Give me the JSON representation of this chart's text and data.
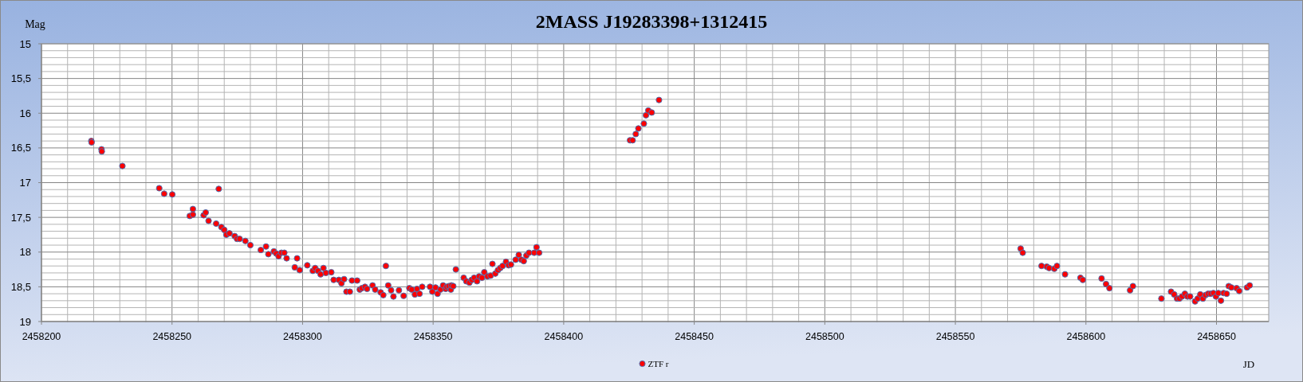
{
  "chart_data": {
    "type": "scatter",
    "title": "2MASS J19283398+1312415",
    "xlabel": "JD",
    "ylabel": "Mag",
    "grid": true,
    "legend": "bottom",
    "marker": "circle",
    "xlim": [
      2458200,
      2458670
    ],
    "ylim": [
      19,
      15
    ],
    "xticks": [
      2458200,
      {
        "value": 2458210,
        "label": null
      },
      {
        "value": 2458220,
        "label": null
      },
      {
        "value": 2458230,
        "label": null
      },
      {
        "value": 2458240,
        "label": null
      },
      2458250,
      {
        "value": 2458260,
        "label": null
      },
      {
        "value": 2458270,
        "label": null
      },
      {
        "value": 2458280,
        "label": null
      },
      {
        "value": 2458290,
        "label": null
      },
      2458300,
      {
        "value": 2458310,
        "label": null
      },
      {
        "value": 2458320,
        "label": null
      },
      {
        "value": 2458330,
        "label": null
      },
      {
        "value": 2458340,
        "label": null
      },
      2458350,
      {
        "value": 2458360,
        "label": null
      },
      {
        "value": 2458370,
        "label": null
      },
      {
        "value": 2458380,
        "label": null
      },
      {
        "value": 2458390,
        "label": null
      },
      2458400,
      {
        "value": 2458410,
        "label": null
      },
      {
        "value": 2458420,
        "label": null
      },
      {
        "value": 2458430,
        "label": null
      },
      {
        "value": 2458440,
        "label": null
      },
      2458450,
      {
        "value": 2458460,
        "label": null
      },
      {
        "value": 2458470,
        "label": null
      },
      {
        "value": 2458480,
        "label": null
      },
      {
        "value": 2458490,
        "label": null
      },
      2458500,
      {
        "value": 2458510,
        "label": null
      },
      {
        "value": 2458520,
        "label": null
      },
      {
        "value": 2458530,
        "label": null
      },
      {
        "value": 2458540,
        "label": null
      },
      2458550,
      {
        "value": 2458560,
        "label": null
      },
      {
        "value": 2458570,
        "label": null
      },
      {
        "value": 2458580,
        "label": null
      },
      {
        "value": 2458590,
        "label": null
      },
      2458600,
      {
        "value": 2458610,
        "label": null
      },
      {
        "value": 2458620,
        "label": null
      },
      {
        "value": 2458630,
        "label": null
      },
      {
        "value": 2458640,
        "label": null
      },
      2458650,
      {
        "value": 2458660,
        "label": null
      }
    ],
    "yticks": [
      15,
      {
        "value": 15.1,
        "label": null
      },
      {
        "value": 15.2,
        "label": null
      },
      {
        "value": 15.3,
        "label": null
      },
      {
        "value": 15.4,
        "label": null
      },
      {
        "value": 15.5,
        "label": "15,5"
      },
      {
        "value": 15.6,
        "label": null
      },
      {
        "value": 15.7,
        "label": null
      },
      {
        "value": 15.8,
        "label": null
      },
      {
        "value": 15.9,
        "label": null
      },
      16,
      {
        "value": 16.1,
        "label": null
      },
      {
        "value": 16.2,
        "label": null
      },
      {
        "value": 16.3,
        "label": null
      },
      {
        "value": 16.4,
        "label": null
      },
      {
        "value": 16.5,
        "label": "16,5"
      },
      {
        "value": 16.6,
        "label": null
      },
      {
        "value": 16.7,
        "label": null
      },
      {
        "value": 16.8,
        "label": null
      },
      {
        "value": 16.9,
        "label": null
      },
      17,
      {
        "value": 17.1,
        "label": null
      },
      {
        "value": 17.2,
        "label": null
      },
      {
        "value": 17.3,
        "label": null
      },
      {
        "value": 17.4,
        "label": null
      },
      {
        "value": 17.5,
        "label": "17,5"
      },
      {
        "value": 17.6,
        "label": null
      },
      {
        "value": 17.7,
        "label": null
      },
      {
        "value": 17.8,
        "label": null
      },
      {
        "value": 17.9,
        "label": null
      },
      18,
      {
        "value": 18.1,
        "label": null
      },
      {
        "value": 18.2,
        "label": null
      },
      {
        "value": 18.3,
        "label": null
      },
      {
        "value": 18.4,
        "label": null
      },
      {
        "value": 18.5,
        "label": "18,5"
      },
      {
        "value": 18.6,
        "label": null
      },
      {
        "value": 18.7,
        "label": null
      },
      {
        "value": 18.8,
        "label": null
      },
      {
        "value": 18.9,
        "label": null
      },
      19
    ],
    "series": [
      {
        "name": "ZTF r",
        "color": "#ff0000",
        "x": [
          2458219.1,
          2458219.2,
          2458223.0,
          2458223.1,
          2458231.0,
          2458245.1,
          2458247.0,
          2458250.1,
          2458256.8,
          2458258.0,
          2458258.0,
          2458262.1,
          2458262.9,
          2458264.0,
          2458266.9,
          2458267.9,
          2458268.9,
          2458270.0,
          2458270.8,
          2458272.0,
          2458274.0,
          2458274.9,
          2458275.9,
          2458278.1,
          2458280.0,
          2458284.0,
          2458286.0,
          2458286.9,
          2458289.0,
          2458289.9,
          2458290.8,
          2458291.9,
          2458293.0,
          2458293.9,
          2458297.0,
          2458297.9,
          2458298.9,
          2458301.8,
          2458303.9,
          2458304.8,
          2458305.9,
          2458306.9,
          2458308.0,
          2458308.9,
          2458311.0,
          2458311.9,
          2458313.9,
          2458314.9,
          2458315.9,
          2458316.8,
          2458318.1,
          2458318.9,
          2458320.9,
          2458321.9,
          2458322.7,
          2458323.9,
          2458324.7,
          2458326.8,
          2458327.8,
          2458329.9,
          2458330.9,
          2458331.9,
          2458332.8,
          2458333.9,
          2458334.8,
          2458336.9,
          2458338.7,
          2458340.9,
          2458341.8,
          2458343.0,
          2458343.8,
          2458344.8,
          2458345.8,
          2458348.8,
          2458349.7,
          2458350.9,
          2458351.7,
          2458352.8,
          2458353.8,
          2458354.8,
          2458355.2,
          2458356.0,
          2458356.8,
          2458357.0,
          2458357.7,
          2458358.7,
          2458361.7,
          2458362.7,
          2458363.9,
          2458364.8,
          2458365.7,
          2458366.8,
          2458367.6,
          2458368.7,
          2458369.6,
          2458370.8,
          2458372.0,
          2458372.7,
          2458373.8,
          2458374.8,
          2458375.7,
          2458376.6,
          2458377.9,
          2458378.9,
          2458379.8,
          2458381.6,
          2458382.8,
          2458383.8,
          2458384.7,
          2458385.7,
          2458386.7,
          2458388.7,
          2458389.6,
          2458390.6,
          2458425.4,
          2458426.4,
          2458427.6,
          2458428.6,
          2458430.7,
          2458431.5,
          2458432.4,
          2458433.7,
          2458436.5,
          2458575.0,
          2458575.8,
          2458583.0,
          2458585.0,
          2458585.9,
          2458587.9,
          2458588.9,
          2458592.0,
          2458597.9,
          2458598.8,
          2458606.0,
          2458607.7,
          2458609.0,
          2458616.9,
          2458618.0,
          2458628.9,
          2458632.6,
          2458633.8,
          2458634.9,
          2458635.8,
          2458636.8,
          2458637.9,
          2458638.9,
          2458639.9,
          2458641.8,
          2458642.8,
          2458643.8,
          2458644.8,
          2458645.8,
          2458646.8,
          2458647.8,
          2458648.8,
          2458649.8,
          2458650.7,
          2458651.7,
          2458652.7,
          2458653.9,
          2458654.7,
          2458655.7,
          2458657.7,
          2458658.7,
          2458661.7,
          2458662.7
        ],
        "values": [
          16.4,
          16.42,
          16.52,
          16.55,
          16.76,
          17.08,
          17.16,
          17.17,
          17.48,
          17.46,
          17.38,
          17.47,
          17.43,
          17.55,
          17.59,
          17.09,
          17.64,
          17.68,
          17.75,
          17.73,
          17.77,
          17.81,
          17.81,
          17.84,
          17.9,
          17.97,
          17.92,
          18.03,
          17.99,
          18.02,
          18.06,
          18.01,
          18.01,
          18.09,
          18.22,
          18.09,
          18.26,
          18.19,
          18.27,
          18.23,
          18.27,
          18.32,
          18.23,
          18.3,
          18.29,
          18.4,
          18.4,
          18.45,
          18.39,
          18.57,
          18.57,
          18.41,
          18.41,
          18.54,
          18.52,
          18.5,
          18.53,
          18.48,
          18.54,
          18.58,
          18.62,
          18.2,
          18.48,
          18.55,
          18.64,
          18.55,
          18.63,
          18.52,
          18.54,
          18.61,
          18.53,
          18.6,
          18.5,
          18.5,
          18.57,
          18.51,
          18.6,
          18.54,
          18.48,
          18.53,
          18.5,
          18.49,
          18.54,
          18.48,
          18.49,
          18.25,
          18.37,
          18.42,
          18.44,
          18.4,
          18.37,
          18.42,
          18.35,
          18.37,
          18.29,
          18.35,
          18.34,
          18.17,
          18.31,
          18.26,
          18.23,
          18.2,
          18.14,
          18.19,
          18.18,
          18.11,
          18.04,
          18.11,
          18.13,
          18.05,
          18.01,
          18.01,
          17.93,
          18.01,
          16.39,
          16.39,
          16.3,
          16.22,
          16.15,
          16.03,
          15.96,
          15.99,
          15.81,
          17.95,
          18.01,
          18.2,
          18.21,
          18.23,
          18.24,
          18.2,
          18.32,
          18.37,
          18.4,
          18.38,
          18.46,
          18.52,
          18.55,
          18.49,
          18.67,
          18.57,
          18.61,
          18.67,
          18.67,
          18.64,
          18.6,
          18.64,
          18.64,
          18.71,
          18.67,
          18.61,
          18.67,
          18.62,
          18.6,
          18.6,
          18.59,
          18.64,
          18.59,
          18.7,
          18.59,
          18.6,
          18.49,
          18.51,
          18.52,
          18.56,
          18.51,
          18.48
        ]
      }
    ]
  }
}
